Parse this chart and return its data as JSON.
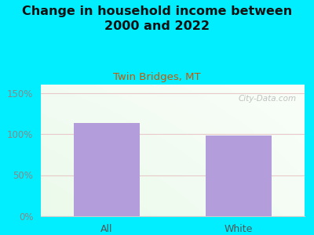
{
  "categories": [
    "All",
    "White"
  ],
  "values": [
    113,
    98
  ],
  "bar_color": "#b39ddb",
  "title": "Change in household income between\n2000 and 2022",
  "subtitle": "Twin Bridges, MT",
  "title_fontsize": 11.5,
  "subtitle_fontsize": 9.5,
  "subtitle_color": "#cc5500",
  "title_color": "#111111",
  "figure_bg": "#00eeff",
  "yticks": [
    0,
    50,
    100,
    150
  ],
  "yticklabels": [
    "0%",
    "50%",
    "100%",
    "150%"
  ],
  "ylim": [
    0,
    160
  ],
  "tick_color": "#888888",
  "grid_color": "#e8c8c8",
  "watermark": "City-Data.com",
  "watermark_color": "#aaaaaa",
  "xticklabel_color": "#555555"
}
